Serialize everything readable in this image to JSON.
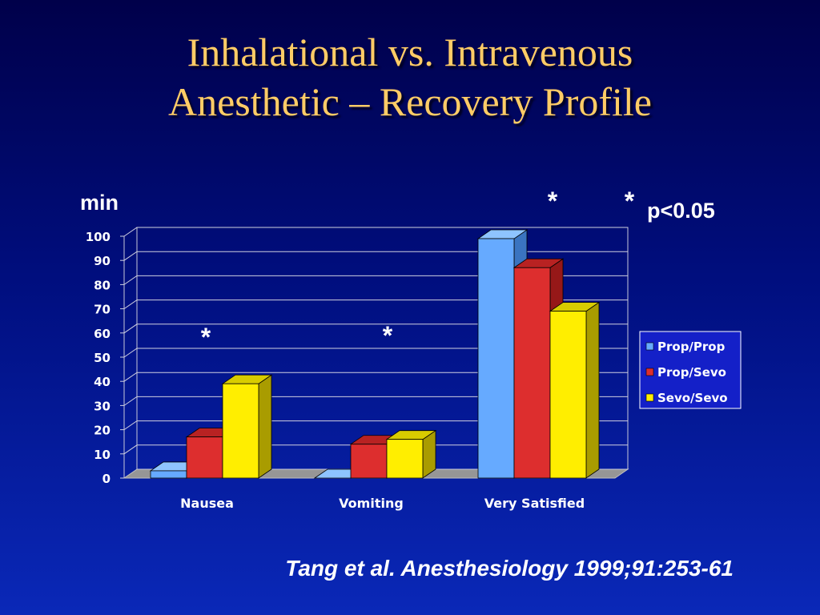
{
  "slide": {
    "title_line1": "Inhalational vs. Intravenous",
    "title_line2": "Anesthetic – Recovery Profile",
    "citation": "Tang et al. Anesthesiology 1999;91:253-61"
  },
  "chart_data": {
    "type": "bar",
    "ylabel": "min",
    "ylim": [
      0,
      100
    ],
    "yticks": [
      "0",
      "10",
      "20",
      "30",
      "40",
      "50",
      "60",
      "70",
      "80",
      "90",
      "100"
    ],
    "categories": [
      "Nausea",
      "Vomiting",
      "Very Satisfied"
    ],
    "series": [
      {
        "name": "Prop/Prop",
        "color": "#66aaff",
        "side": "#3a74c0",
        "top": "#8ec4ff",
        "values": [
          3,
          0,
          99
        ]
      },
      {
        "name": "Prop/Sevo",
        "color": "#dd2e2e",
        "side": "#961818",
        "top": "#b82222",
        "values": [
          17,
          14,
          87
        ]
      },
      {
        "name": "Sevo/Sevo",
        "color": "#ffee00",
        "side": "#a99c00",
        "top": "#d8cc00",
        "values": [
          39,
          16,
          69
        ]
      }
    ],
    "significance_marks": [
      {
        "category": "Nausea",
        "text": "*"
      },
      {
        "category": "Vomiting",
        "text": "*"
      },
      {
        "category": "Very Satisfied",
        "text": "*"
      }
    ],
    "significance_note": "p<0.05",
    "grid": true,
    "legend_position": "right",
    "style": "3d"
  }
}
